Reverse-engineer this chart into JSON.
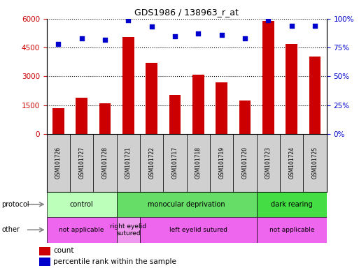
{
  "title": "GDS1986 / 138963_r_at",
  "samples": [
    "GSM101726",
    "GSM101727",
    "GSM101728",
    "GSM101721",
    "GSM101722",
    "GSM101717",
    "GSM101718",
    "GSM101719",
    "GSM101720",
    "GSM101723",
    "GSM101724",
    "GSM101725"
  ],
  "counts": [
    1350,
    1900,
    1600,
    5050,
    3700,
    2050,
    3100,
    2700,
    1750,
    5900,
    4700,
    4050
  ],
  "percentiles": [
    78,
    83,
    82,
    99,
    93,
    85,
    87,
    86,
    83,
    99,
    94,
    94
  ],
  "bar_color": "#cc0000",
  "dot_color": "#0000cc",
  "ylim_left": [
    0,
    6000
  ],
  "ylim_right": [
    0,
    100
  ],
  "yticks_left": [
    0,
    1500,
    3000,
    4500,
    6000
  ],
  "yticks_right": [
    0,
    25,
    50,
    75,
    100
  ],
  "protocol_groups": [
    {
      "label": "control",
      "start": 0,
      "end": 3,
      "color": "#bbffbb"
    },
    {
      "label": "monocular deprivation",
      "start": 3,
      "end": 9,
      "color": "#66dd66"
    },
    {
      "label": "dark rearing",
      "start": 9,
      "end": 12,
      "color": "#44dd44"
    }
  ],
  "other_groups": [
    {
      "label": "not applicable",
      "start": 0,
      "end": 3,
      "color": "#ee66ee"
    },
    {
      "label": "right eyelid\nsutured",
      "start": 3,
      "end": 4,
      "color": "#ee99ee"
    },
    {
      "label": "left eyelid sutured",
      "start": 4,
      "end": 9,
      "color": "#ee66ee"
    },
    {
      "label": "not applicable",
      "start": 9,
      "end": 12,
      "color": "#ee66ee"
    }
  ],
  "protocol_label": "protocol",
  "other_label": "other",
  "legend_count_label": "count",
  "legend_pct_label": "percentile rank within the sample",
  "tick_color_left": "#cc0000",
  "tick_color_right": "#0000cc",
  "bar_width": 0.5,
  "sample_box_color": "#d0d0d0",
  "sample_text_color": "#000000",
  "bg_color": "#ffffff"
}
